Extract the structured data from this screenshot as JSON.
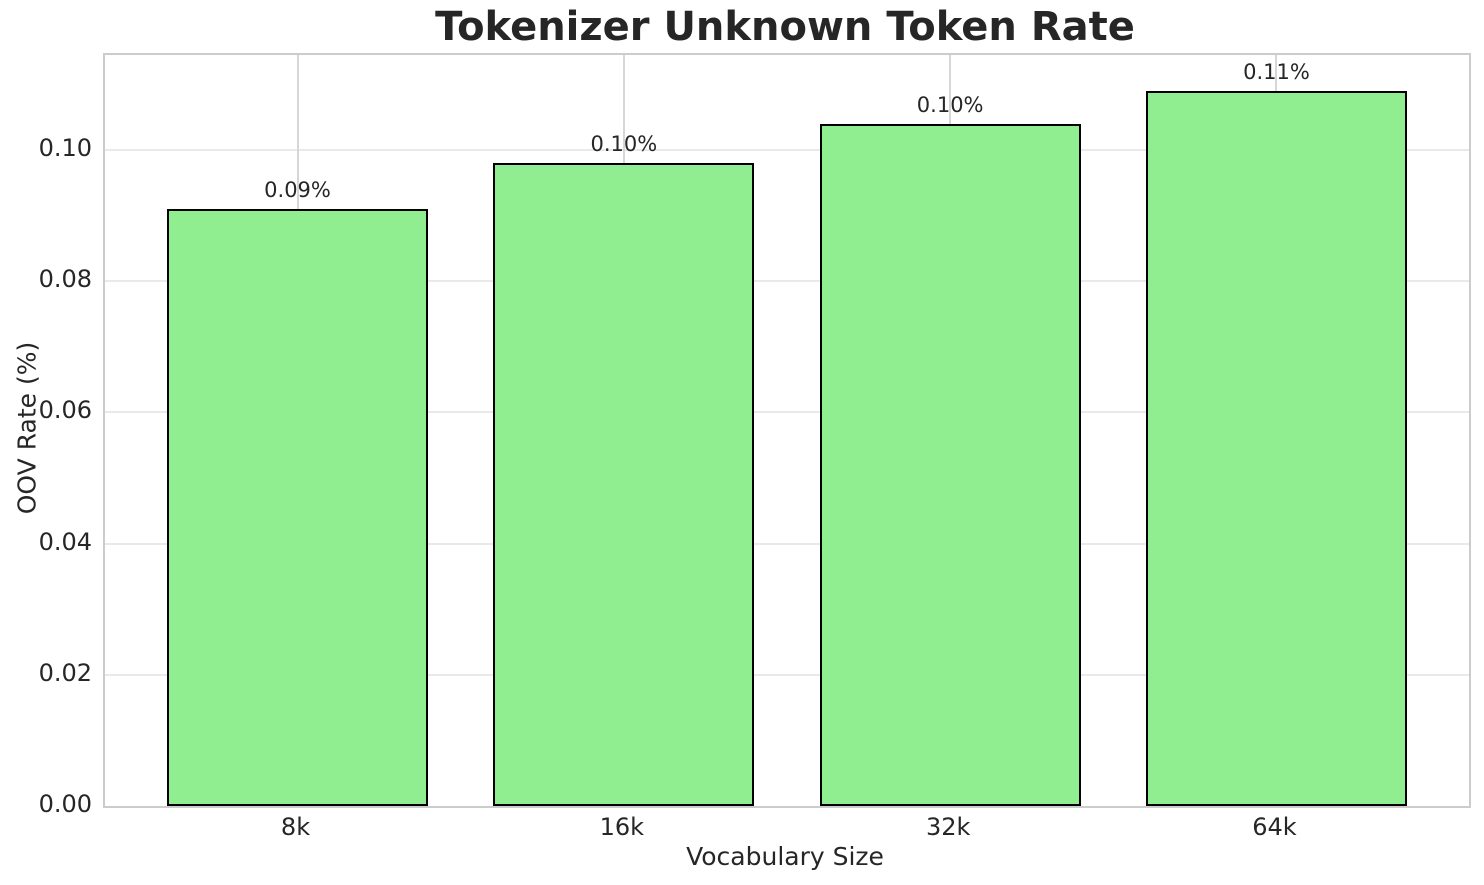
{
  "chart_data": {
    "type": "bar",
    "title": "Tokenizer Unknown Token Rate",
    "xlabel": "Vocabulary Size",
    "ylabel": "OOV Rate (%)",
    "categories": [
      "8k",
      "16k",
      "32k",
      "64k"
    ],
    "values": [
      0.091,
      0.098,
      0.104,
      0.109
    ],
    "bar_labels": [
      "0.09%",
      "0.10%",
      "0.10%",
      "0.11%"
    ],
    "ylim": [
      0,
      0.1145
    ],
    "yticks": [
      0.0,
      0.02,
      0.04,
      0.06,
      0.08,
      0.1
    ],
    "ytick_labels": [
      "0.00",
      "0.02",
      "0.04",
      "0.06",
      "0.08",
      "0.10"
    ],
    "bar_color": "#90EE90",
    "bar_edge_color": "#000000",
    "grid": true,
    "legend": null
  }
}
